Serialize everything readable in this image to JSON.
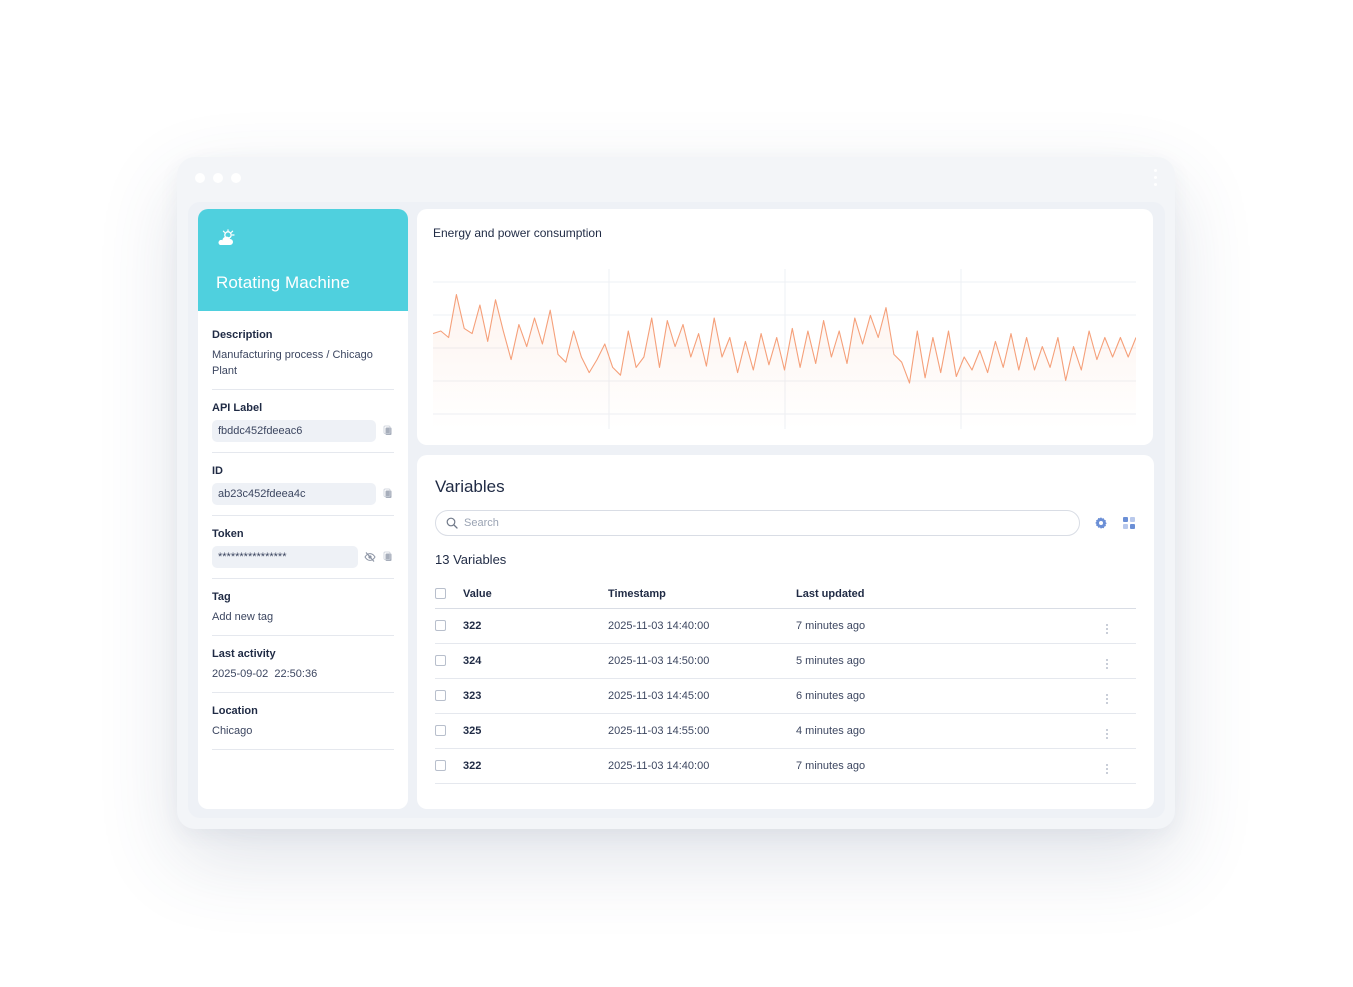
{
  "device": {
    "title": "Rotating Machine",
    "icon": "cloud-sun-icon",
    "accent_color": "#4fd0de",
    "properties": {
      "description": {
        "label": "Description",
        "value": "Manufacturing process / Chicago Plant"
      },
      "api_label": {
        "label": "API Label",
        "value": "fbddc452fdeeac6"
      },
      "id": {
        "label": "ID",
        "value": "ab23c452fdeea4c"
      },
      "token": {
        "label": "Token",
        "value": "****************"
      },
      "tag": {
        "label": "Tag",
        "value": "Add new tag"
      },
      "last_activity": {
        "label": "Last activity",
        "value": "2025-09-02  22:50:36"
      },
      "location": {
        "label": "Location",
        "value": "Chicago"
      }
    }
  },
  "chart": {
    "title": "Energy and power consumption",
    "line_color": "#f5a07a"
  },
  "chart_data": {
    "type": "line",
    "title": "Energy and power consumption",
    "xlabel": "",
    "ylabel": "",
    "grid": true,
    "ylim": [
      0,
      100
    ],
    "series": [
      {
        "values": [
          58,
          60,
          55,
          88,
          62,
          58,
          80,
          52,
          84,
          60,
          38,
          65,
          48,
          70,
          50,
          76,
          42,
          36,
          60,
          40,
          28,
          38,
          50,
          32,
          26,
          60,
          32,
          40,
          70,
          32,
          68,
          48,
          65,
          40,
          58,
          33,
          70,
          40,
          55,
          28,
          52,
          30,
          58,
          34,
          55,
          30,
          62,
          32,
          60,
          35,
          68,
          40,
          60,
          35,
          70,
          50,
          72,
          55,
          78,
          42,
          36,
          20,
          60,
          24,
          55,
          28,
          60,
          25,
          40,
          30,
          45,
          28,
          52,
          32,
          58,
          30,
          55,
          30,
          48,
          32,
          55,
          22,
          48,
          30,
          60,
          38,
          55,
          40,
          55,
          40,
          55
        ]
      }
    ]
  },
  "variables": {
    "title": "Variables",
    "search_placeholder": "Search",
    "count_label": "13 Variables",
    "columns": {
      "value": "Value",
      "timestamp": "Timestamp",
      "last_updated": "Last updated"
    },
    "rows": [
      {
        "value": "322",
        "timestamp": "2025-11-03 14:40:00",
        "last_updated": "7 minutes ago"
      },
      {
        "value": "324",
        "timestamp": "2025-11-03 14:50:00",
        "last_updated": "5 minutes ago"
      },
      {
        "value": "323",
        "timestamp": "2025-11-03 14:45:00",
        "last_updated": "6 minutes ago"
      },
      {
        "value": "325",
        "timestamp": "2025-11-03 14:55:00",
        "last_updated": "4 minutes ago"
      },
      {
        "value": "322",
        "timestamp": "2025-11-03 14:40:00",
        "last_updated": "7 minutes ago"
      }
    ]
  }
}
